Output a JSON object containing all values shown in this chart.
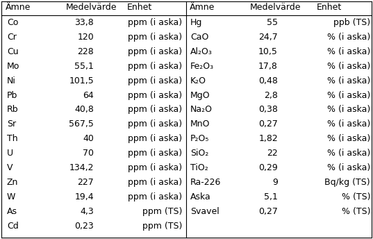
{
  "left_data": [
    [
      "Co",
      "33,8",
      "ppm (i aska)"
    ],
    [
      "Cr",
      "120",
      "ppm (i aska)"
    ],
    [
      "Cu",
      "228",
      "ppm (i aska)"
    ],
    [
      "Mo",
      "55,1",
      "ppm (i aska)"
    ],
    [
      "Ni",
      "101,5",
      "ppm (i aska)"
    ],
    [
      "Pb",
      "64",
      "ppm (i aska)"
    ],
    [
      "Rb",
      "40,8",
      "ppm (i aska)"
    ],
    [
      "Sr",
      "567,5",
      "ppm (i aska)"
    ],
    [
      "Th",
      "40",
      "ppm (i aska)"
    ],
    [
      "U",
      "70",
      "ppm (i aska)"
    ],
    [
      "V",
      "134,2",
      "ppm (i aska)"
    ],
    [
      "Zn",
      "227",
      "ppm (i aska)"
    ],
    [
      "W",
      "19,4",
      "ppm (i aska)"
    ],
    [
      "As",
      "4,3",
      "ppm (TS)"
    ],
    [
      "Cd",
      "0,23",
      "ppm (TS)"
    ]
  ],
  "right_data": [
    [
      "Hg",
      "55",
      "ppb (TS)"
    ],
    [
      "CaO",
      "24,7",
      "% (i aska)"
    ],
    [
      "Al₂O₃",
      "10,5",
      "% (i aska)"
    ],
    [
      "Fe₂O₃",
      "17,8",
      "% (i aska)"
    ],
    [
      "K₂O",
      "0,48",
      "% (i aska)"
    ],
    [
      "MgO",
      "2,8",
      "% (i aska)"
    ],
    [
      "Na₂O",
      "0,38",
      "% (i aska)"
    ],
    [
      "MnO",
      "0,27",
      "% (i aska)"
    ],
    [
      "P₂O₅",
      "1,82",
      "% (i aska)"
    ],
    [
      "SiO₂",
      "22",
      "% (i aska)"
    ],
    [
      "TiO₂",
      "0,29",
      "% (i aska)"
    ],
    [
      "Ra-226",
      "9",
      "Bq/kg (TS)"
    ],
    [
      "Aska",
      "5,1",
      "% (TS)"
    ],
    [
      "Svavel",
      "0,27",
      "% (TS)"
    ]
  ],
  "left_headers": [
    "Ämne",
    "Medelvärde",
    "Enhet"
  ],
  "right_headers": [
    "Ämne",
    "Medelvärde",
    "Enhet"
  ],
  "bg_color": "#ffffff",
  "border_color": "#000000",
  "text_color": "#000000",
  "font_size": 9.0
}
